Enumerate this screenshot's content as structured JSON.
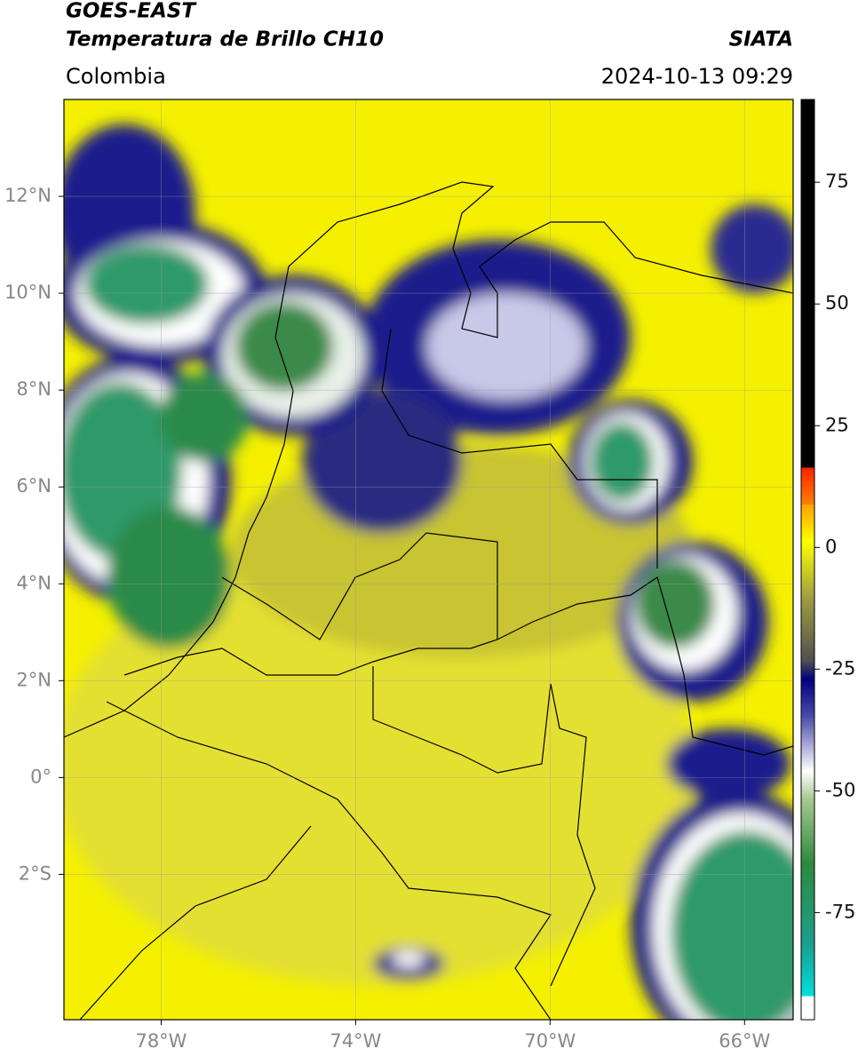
{
  "header": {
    "title": "GOES-EAST",
    "subtitle": "Temperatura de Brillo CH10",
    "region": "Colombia",
    "source": "SIATA",
    "datetime": "2024-10-13 09:29"
  },
  "map": {
    "lon_range": [
      -80,
      -65
    ],
    "lat_range": [
      -5,
      14
    ],
    "lon_ticks": [
      {
        "value": -78,
        "label": "78°W"
      },
      {
        "value": -74,
        "label": "74°W"
      },
      {
        "value": -70,
        "label": "70°W"
      },
      {
        "value": -66,
        "label": "66°W"
      }
    ],
    "lat_ticks": [
      {
        "value": 12,
        "label": "12°N"
      },
      {
        "value": 10,
        "label": "10°N"
      },
      {
        "value": 8,
        "label": "8°N"
      },
      {
        "value": 6,
        "label": "6°N"
      },
      {
        "value": 4,
        "label": "4°N"
      },
      {
        "value": 2,
        "label": "2°N"
      },
      {
        "value": 0,
        "label": "0°"
      },
      {
        "value": -2,
        "label": "2°S"
      }
    ]
  },
  "colorbar": {
    "range": [
      -97,
      92
    ],
    "ticks": [
      75,
      50,
      25,
      0,
      -25,
      -50,
      -75
    ]
  }
}
